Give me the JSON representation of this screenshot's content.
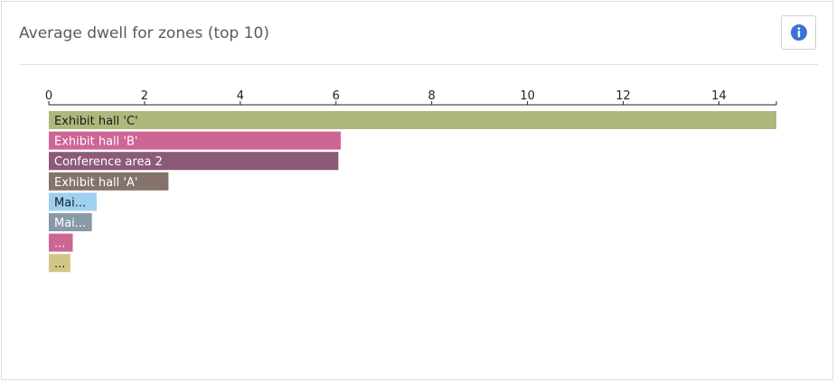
{
  "card": {
    "title": "Average dwell for zones (top 10)",
    "info_icon": "info-icon",
    "info_icon_color": "#3b73d4"
  },
  "chart_data": {
    "type": "bar",
    "orientation": "horizontal",
    "title": "Average dwell for zones (top 10)",
    "xlabel": "",
    "ylabel": "",
    "xlim": [
      0,
      15.2
    ],
    "ticks": [
      0,
      2,
      4,
      6,
      8,
      10,
      12,
      14
    ],
    "tick_labels": [
      "0",
      "2",
      "4",
      "6",
      "8",
      "10",
      "12",
      "14"
    ],
    "axis_position": "top",
    "grid": false,
    "categories": [
      "Exhibit hall 'C'",
      "Exhibit hall 'B'",
      "Conference area 2",
      "Exhibit hall 'A'",
      "Mai...",
      "Mai...",
      "...",
      "..."
    ],
    "values": [
      15.2,
      6.1,
      6.05,
      2.5,
      1.0,
      0.9,
      0.5,
      0.45
    ],
    "colors": [
      "#afb87a",
      "#cd6695",
      "#8c5a78",
      "#85726a",
      "#9fd0f0",
      "#8899a8",
      "#cd6695",
      "#d2c686"
    ],
    "label_colors": [
      "#1a1a1a",
      "#ffffff",
      "#ffffff",
      "#ffffff",
      "#1a1a1a",
      "#ffffff",
      "#ffffff",
      "#1a1a1a"
    ]
  }
}
